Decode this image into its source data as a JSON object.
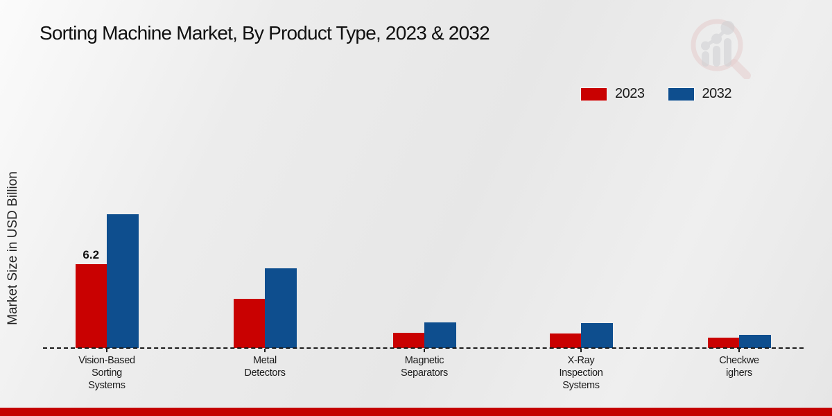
{
  "page": {
    "title": "Sorting Machine Market, By Product Type, 2023 & 2032",
    "ylabel": "Market Size in USD Billion"
  },
  "legend": {
    "items": [
      {
        "label": "2023",
        "color": "#c90101"
      },
      {
        "label": "2032",
        "color": "#0e4e8e"
      }
    ]
  },
  "colors": {
    "bar_2023": "#c90101",
    "bar_2032": "#0e4e8e",
    "footer_band": "#c40000",
    "baseline": "#1a1a1a"
  },
  "chart_data": {
    "type": "bar",
    "title": "Sorting Machine Market, By Product Type, 2023 & 2032",
    "xlabel": "",
    "ylabel": "Market Size in USD Billion",
    "unit": "USD Billion",
    "categories": [
      [
        "Vision-Based",
        "Sorting",
        "Systems"
      ],
      [
        "Metal",
        "Detectors"
      ],
      [
        "Magnetic",
        "Separators"
      ],
      [
        "X-Ray",
        "Inspection",
        "Systems"
      ],
      [
        "Checkwe",
        "ighers"
      ]
    ],
    "series": [
      {
        "name": "2023",
        "color": "#c90101",
        "values": [
          6.2,
          3.65,
          1.15,
          1.1,
          0.75
        ]
      },
      {
        "name": "2032",
        "color": "#0e4e8e",
        "values": [
          9.9,
          5.9,
          1.9,
          1.85,
          1.0
        ]
      }
    ],
    "annotations": [
      {
        "series": "2023",
        "category_index": 0,
        "text": "6.2"
      }
    ],
    "ylim": [
      0,
      10.5
    ],
    "grid": false,
    "baseline_style": "dashed",
    "legend_position": "top-right"
  }
}
